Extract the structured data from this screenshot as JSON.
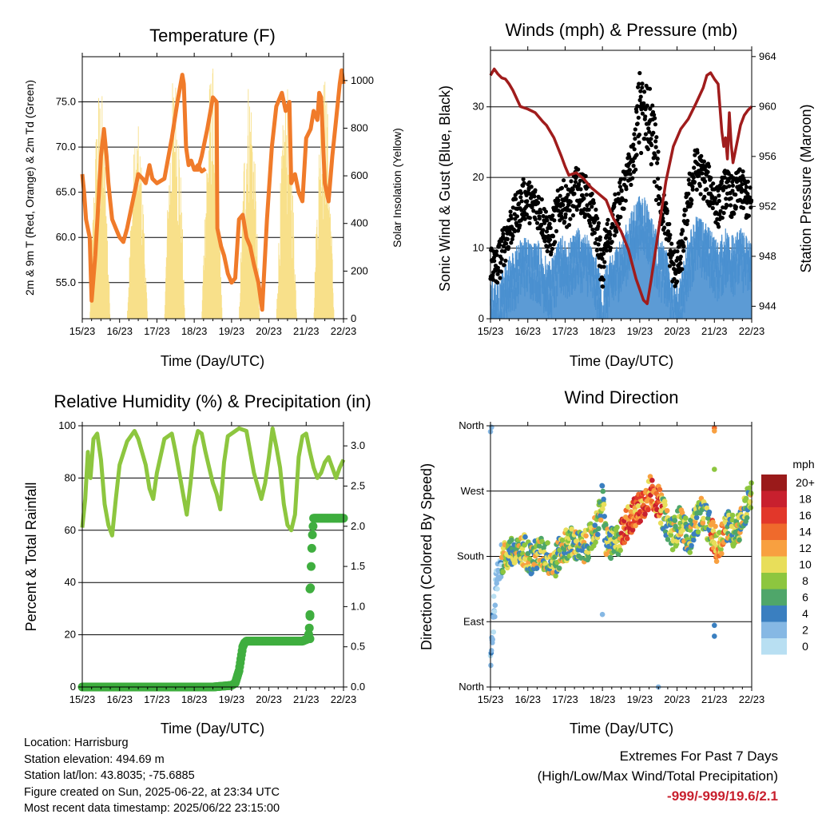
{
  "x_ticks": [
    "15/23",
    "16/23",
    "17/23",
    "18/23",
    "19/23",
    "20/23",
    "21/23",
    "22/23"
  ],
  "charts": [
    {
      "id": "temperature",
      "type": "line",
      "title": "Temperature (F)",
      "xlabel": "Time (Day/UTC)",
      "ylabel": "2m & 9m T (Red, Orange) & 2m Td (Green)",
      "y2label": "Solar Insolation (Yellow)",
      "ylim": [
        51,
        80
      ],
      "yticks": [
        "55.0",
        "60.0",
        "65.0",
        "70.0",
        "75.0"
      ],
      "y2lim": [
        0,
        1100
      ],
      "y2ticks": [
        "0",
        "200",
        "400",
        "600",
        "800",
        "1000"
      ],
      "series": [
        {
          "color": "#f07b2a",
          "x": [
            0,
            0.05,
            0.1,
            0.2,
            0.25,
            0.35,
            0.42,
            0.5,
            0.58,
            0.65,
            0.7,
            0.75,
            0.8,
            0.9,
            1.0,
            1.1,
            1.2,
            1.35,
            1.5,
            1.62,
            1.7,
            1.8,
            1.88,
            2.0,
            2.2,
            2.4,
            2.55,
            2.68,
            2.72,
            2.78,
            2.85,
            2.92,
            3.0,
            3.1,
            3.2,
            3.35,
            3.5,
            3.6,
            3.62,
            3.72,
            3.8,
            3.85,
            3.9,
            4.0,
            4.1,
            4.2,
            4.3,
            4.4,
            4.5,
            4.6,
            4.72,
            4.82,
            4.95,
            5.08,
            5.2,
            5.35,
            5.45,
            5.55,
            5.6,
            5.7,
            5.8,
            5.9,
            6.0,
            6.12,
            6.2,
            6.3,
            6.35,
            6.4,
            6.5,
            6.6,
            6.7,
            6.8,
            6.9,
            6.95,
            7.0
          ],
          "y": [
            67,
            65,
            62,
            60,
            53,
            58,
            63,
            69,
            72,
            69,
            66,
            64,
            62,
            61,
            60,
            59.5,
            61,
            64,
            67,
            66.5,
            66,
            68,
            66.5,
            66,
            66.5,
            71,
            75,
            78,
            77,
            70,
            68,
            68.5,
            67.5,
            67.5,
            69,
            72,
            75.5,
            75,
            61,
            59,
            58,
            57,
            56,
            55,
            55.5,
            62,
            62.5,
            60,
            59,
            57,
            55,
            52,
            62,
            70,
            74.5,
            76,
            74,
            75,
            66,
            67,
            65,
            64,
            71,
            72,
            74,
            73,
            76,
            75.5,
            66,
            64,
            69,
            73,
            77,
            78.5,
            77
          ]
        },
        {
          "color": "#f07b2a",
          "x": [
            3.0,
            3.1,
            3.2,
            3.3
          ],
          "y": [
            67.5,
            68,
            67.3,
            67.6
          ]
        }
      ]
    },
    {
      "id": "winds",
      "type": "scatter+line",
      "title": "Winds (mph) & Pressure (mb)",
      "xlabel": "Time (Day/UTC)",
      "ylabel": "Sonic Wind & Gust (Blue, Black)",
      "y2label": "Station Pressure (Maroon)",
      "ylim": [
        0,
        38
      ],
      "yticks": [
        "0",
        "10",
        "20",
        "30"
      ],
      "y2lim": [
        943,
        964.5
      ],
      "y2ticks": [
        "944",
        "948",
        "952",
        "956",
        "960",
        "964"
      ],
      "pressure": {
        "color": "#a01c1c",
        "x": [
          0,
          0.1,
          0.2,
          0.3,
          0.4,
          0.5,
          0.6,
          0.8,
          1.0,
          1.2,
          1.4,
          1.5,
          1.7,
          1.9,
          2.0,
          2.1,
          2.3,
          2.5,
          2.7,
          2.9,
          3.1,
          3.3,
          3.5,
          3.7,
          3.9,
          4.1,
          4.2,
          4.3,
          4.5,
          4.7,
          4.9,
          5.1,
          5.3,
          5.5,
          5.7,
          5.8,
          5.9,
          6.0,
          6.1,
          6.2,
          6.25,
          6.3,
          6.35,
          6.4,
          6.45,
          6.5,
          6.6,
          6.7,
          6.8,
          6.9,
          7.0
        ],
        "y": [
          962.5,
          963,
          962.6,
          962.3,
          962.2,
          961.8,
          961.3,
          960,
          959.8,
          959.5,
          958.8,
          958.5,
          957.5,
          956,
          955.2,
          954.5,
          954.7,
          954.2,
          953.5,
          953,
          952.5,
          951,
          950,
          948.5,
          946.2,
          944.5,
          944.2,
          946,
          950,
          954,
          956.8,
          958.2,
          959,
          960.2,
          961.5,
          962.5,
          962.7,
          962.2,
          961.8,
          958,
          956.8,
          957.5,
          955.8,
          959.5,
          957,
          955.5,
          957,
          958.5,
          959.3,
          959.7,
          960
        ]
      },
      "gust_color": "#000000",
      "wind_color": "#4a90d0"
    },
    {
      "id": "humidity",
      "type": "line",
      "title": "Relative Humidity (%) & Precipitation (in)",
      "xlabel": "Time (Day/UTC)",
      "ylabel": "Percent & Total Rainfall",
      "ylim": [
        0,
        100
      ],
      "yticks": [
        "0",
        "20",
        "40",
        "60",
        "80",
        "100"
      ],
      "y2lim": [
        0,
        3.25
      ],
      "y2ticks": [
        "0.0",
        "0.5",
        "1.0",
        "1.5",
        "2.0",
        "2.5",
        "3.0"
      ],
      "rh": {
        "color": "#8dc63f",
        "x": [
          0,
          0.08,
          0.15,
          0.22,
          0.3,
          0.4,
          0.5,
          0.6,
          0.7,
          0.8,
          0.9,
          1.0,
          1.2,
          1.4,
          1.5,
          1.7,
          1.8,
          1.9,
          2.0,
          2.2,
          2.4,
          2.5,
          2.6,
          2.7,
          2.8,
          2.9,
          3.0,
          3.1,
          3.2,
          3.3,
          3.4,
          3.5,
          3.6,
          3.7,
          3.8,
          3.9,
          4.0,
          4.2,
          4.4,
          4.5,
          4.6,
          4.8,
          4.9,
          5.0,
          5.1,
          5.2,
          5.3,
          5.4,
          5.5,
          5.6,
          5.7,
          5.8,
          5.9,
          6.0,
          6.1,
          6.2,
          6.3,
          6.4,
          6.5,
          6.6,
          6.8,
          6.9,
          7.0
        ],
        "y": [
          61,
          72,
          90,
          80,
          95,
          97,
          87,
          70,
          62,
          58,
          72,
          85,
          94,
          98,
          95,
          85,
          76,
          72,
          82,
          95,
          97,
          90,
          82,
          74,
          66,
          78,
          92,
          98,
          97,
          90,
          84,
          78,
          74,
          68,
          86,
          96,
          97,
          99,
          98,
          90,
          82,
          72,
          78,
          88,
          99,
          92,
          84,
          70,
          62,
          60,
          66,
          88,
          96,
          97,
          90,
          84,
          80,
          82,
          86,
          88,
          80,
          84,
          87
        ]
      },
      "precip": {
        "color": "#3fae3f",
        "x": [
          0,
          0.5,
          1.0,
          1.5,
          2.0,
          2.5,
          3.0,
          3.5,
          4.0,
          4.1,
          4.2,
          4.25,
          4.3,
          4.35,
          4.4,
          4.5,
          4.7,
          5.0,
          5.5,
          5.9,
          6.05,
          6.08,
          6.1,
          6.12,
          6.14,
          6.16,
          6.18,
          6.2,
          6.3,
          6.5,
          7.0
        ],
        "y": [
          0,
          0,
          0,
          0,
          0,
          0,
          0,
          0,
          0.02,
          0.05,
          0.2,
          0.35,
          0.5,
          0.55,
          0.57,
          0.57,
          0.57,
          0.57,
          0.57,
          0.57,
          0.6,
          0.7,
          0.9,
          1.3,
          1.6,
          1.85,
          1.98,
          2.1,
          2.1,
          2.1,
          2.1
        ]
      }
    },
    {
      "id": "direction",
      "type": "scatter",
      "title": "Wind Direction",
      "xlabel": "Time (Day/UTC)",
      "ylabel": "Direction (Colored By Speed)",
      "ylim": [
        0,
        360
      ],
      "yticks": [
        "North",
        "East",
        "South",
        "West",
        "North"
      ],
      "legend_title": "mph",
      "legend_labels": [
        "20+",
        "18",
        "16",
        "14",
        "12",
        "10",
        "8",
        "6",
        "4",
        "2",
        "0"
      ],
      "legend_colors": [
        "#9a1a1a",
        "#c8202e",
        "#e2372a",
        "#ef6a2c",
        "#f8a040",
        "#e8de5a",
        "#8dc63f",
        "#4fa66a",
        "#3a7fc0",
        "#86b8e4",
        "#b8dff2"
      ],
      "mean_x": [
        0,
        0.1,
        0.2,
        0.3,
        0.5,
        0.7,
        0.9,
        1.1,
        1.3,
        1.5,
        1.7,
        1.9,
        2.1,
        2.3,
        2.5,
        2.7,
        2.9,
        3.0,
        3.1,
        3.3,
        3.5,
        3.7,
        3.9,
        4.1,
        4.3,
        4.5,
        4.7,
        4.9,
        5.1,
        5.3,
        5.5,
        5.7,
        5.9,
        6.1,
        6.3,
        6.5,
        6.7,
        6.9,
        7.0
      ],
      "mean_y": [
        40,
        110,
        165,
        175,
        185,
        180,
        190,
        175,
        185,
        180,
        170,
        188,
        200,
        195,
        190,
        205,
        230,
        260,
        200,
        195,
        210,
        230,
        240,
        255,
        270,
        255,
        230,
        210,
        230,
        200,
        230,
        240,
        215,
        190,
        225,
        215,
        225,
        255,
        260
      ]
    }
  ],
  "info": {
    "location": "Location: Harrisburg",
    "elevation": "Station elevation: 494.69 m",
    "latlon": "Station lat/lon: 43.8035; -75.6885",
    "created": "Figure created on Sun, 2025-06-22, at 23:34 UTC",
    "recent": "Most recent data timestamp: 2025/06/22 23:15:00"
  },
  "extremes": {
    "title": "Extremes For Past 7 Days",
    "subtitle": "(High/Low/Max Wind/Total Precipitation)",
    "values": "-999/-999/19.6/2.1"
  }
}
